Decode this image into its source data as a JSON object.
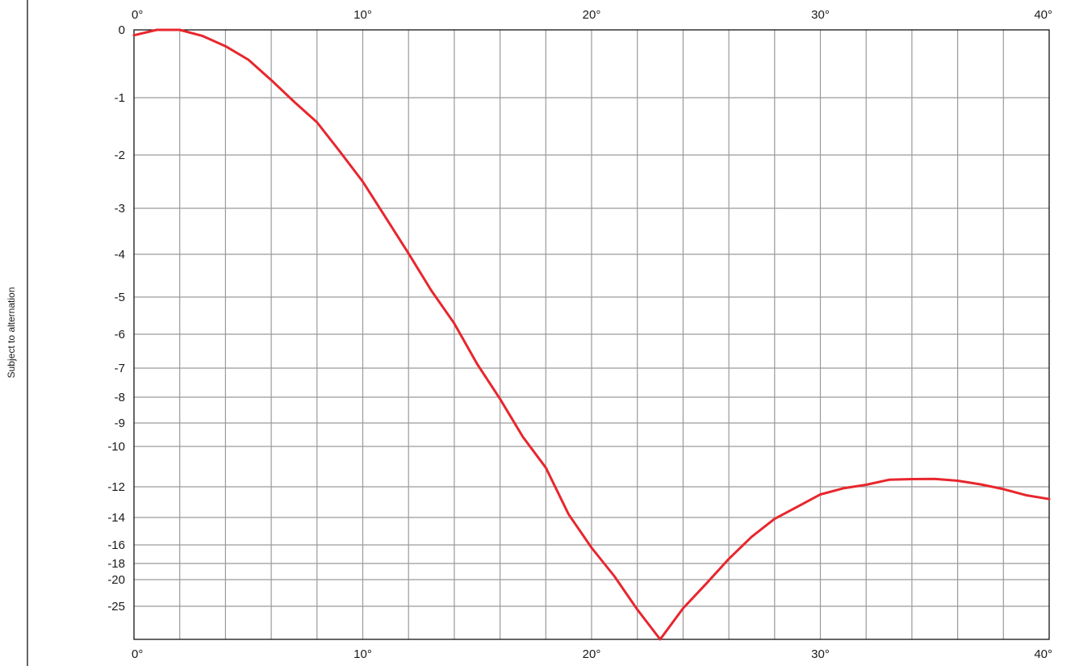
{
  "side_note": "Subject to alternation",
  "colors": {
    "curve": "#e8262d",
    "grid": "#9a9a9a",
    "frame": "#000000",
    "text": "#1a1a1a"
  },
  "chart_data": {
    "type": "line",
    "title": "",
    "xlabel": "",
    "ylabel": "",
    "xlim": [
      0,
      40
    ],
    "x_ticks": [
      0,
      10,
      20,
      30,
      40
    ],
    "x_tick_labels": [
      "0°",
      "10°",
      "20°",
      "30°",
      "40°"
    ],
    "x_tick_labels_top": [
      "0°",
      "10°",
      "20°",
      "30°",
      "40°"
    ],
    "x_minor_step": 2,
    "y_scale": "nonlinear (tick-spaced)",
    "y_ticks": [
      0,
      -1,
      -2,
      -3,
      -4,
      -5,
      -6,
      -7,
      -8,
      -9,
      -10,
      -12,
      -14,
      -16,
      -18,
      -20,
      -25
    ],
    "y_tick_labels": [
      "0",
      "-1",
      "-2",
      "-3",
      "-4",
      "-5",
      "-6",
      "-7",
      "-8",
      "-9",
      "-10",
      "-12",
      "-14",
      "-16",
      "-18",
      "-20",
      "-25"
    ],
    "grid": true,
    "legend": "none",
    "series": [
      {
        "x": [
          0,
          1,
          2,
          3,
          4,
          5,
          6,
          7,
          8,
          9,
          10,
          11,
          12,
          13,
          14,
          15,
          16,
          17,
          18,
          19,
          20,
          21,
          22,
          23,
          24,
          25,
          26,
          27,
          28,
          29,
          30,
          31,
          32,
          33,
          34,
          35,
          36,
          37,
          38,
          39,
          40
        ],
        "y": [
          -0.08,
          0,
          0,
          -0.09,
          -0.24,
          -0.44,
          -0.74,
          -1.07,
          -1.43,
          -1.94,
          -2.5,
          -3.2,
          -3.98,
          -4.85,
          -5.71,
          -6.88,
          -8.07,
          -9.6,
          -11.05,
          -13.8,
          -16.3,
          -19.6,
          -25.5,
          -30,
          -25.3,
          -20.8,
          -17.5,
          -15.4,
          -14.1,
          -13.3,
          -12.5,
          -12.1,
          -11.9,
          -11.65,
          -11.62,
          -11.61,
          -11.7,
          -11.88,
          -12.15,
          -12.55,
          -12.8
        ]
      }
    ]
  }
}
